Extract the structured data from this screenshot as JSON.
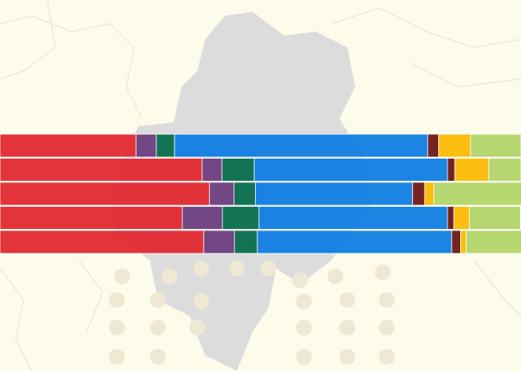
{
  "chart_data": {
    "type": "stacked-bar-horizontal",
    "categories": [
      null,
      null,
      null,
      null,
      null
    ],
    "xlim": [
      0,
      100
    ],
    "series": [
      {
        "color": "#e0252b",
        "values": [
          26.1,
          38.8,
          40.2,
          35.0,
          39.1
        ]
      },
      {
        "color": "#6b3a7d",
        "values": [
          3.9,
          3.8,
          4.7,
          7.7,
          5.9
        ]
      },
      {
        "color": "#04694a",
        "values": [
          3.5,
          6.2,
          4.1,
          7.0,
          4.4
        ]
      },
      {
        "color": "#0b7be2",
        "values": [
          48.6,
          37.1,
          30.2,
          36.2,
          37.3
        ]
      },
      {
        "color": "#6a1313",
        "values": [
          2.1,
          1.4,
          2.3,
          1.2,
          1.7
        ]
      },
      {
        "color": "#fbb900",
        "values": [
          6.1,
          6.5,
          1.8,
          3.0,
          1.1
        ]
      },
      {
        "color": "#b2d466",
        "values": [
          9.7,
          6.2,
          16.8,
          9.8,
          10.6
        ]
      }
    ]
  }
}
